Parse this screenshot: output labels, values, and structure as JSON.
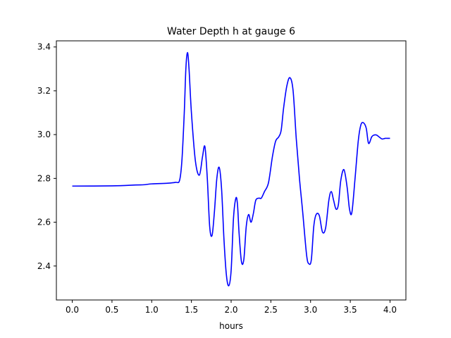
{
  "chart_data": {
    "type": "line",
    "title": "Water Depth h at gauge 6",
    "xlabel": "hours",
    "ylabel": "",
    "xlim": [
      -0.2,
      4.2
    ],
    "ylim": [
      2.245,
      3.428
    ],
    "xticks": [
      0.0,
      0.5,
      1.0,
      1.5,
      2.0,
      2.5,
      3.0,
      3.5,
      4.0
    ],
    "xtick_labels": [
      "0.0",
      "0.5",
      "1.0",
      "1.5",
      "2.0",
      "2.5",
      "3.0",
      "3.5",
      "4.0"
    ],
    "yticks": [
      2.4,
      2.6,
      2.8,
      3.0,
      3.2,
      3.4
    ],
    "ytick_labels": [
      "2.4",
      "2.6",
      "2.8",
      "3.0",
      "3.2",
      "3.4"
    ],
    "grid": false,
    "series": [
      {
        "color": "#0000ff",
        "x": [
          0.0,
          0.5,
          0.8,
          0.9,
          1.0,
          1.2,
          1.3,
          1.35,
          1.38,
          1.41,
          1.43,
          1.45,
          1.47,
          1.5,
          1.55,
          1.6,
          1.64,
          1.67,
          1.7,
          1.73,
          1.76,
          1.79,
          1.82,
          1.85,
          1.88,
          1.91,
          1.94,
          1.97,
          2.0,
          2.03,
          2.06,
          2.08,
          2.1,
          2.13,
          2.16,
          2.19,
          2.22,
          2.25,
          2.28,
          2.31,
          2.35,
          2.38,
          2.42,
          2.47,
          2.52,
          2.56,
          2.6,
          2.63,
          2.66,
          2.7,
          2.74,
          2.78,
          2.82,
          2.86,
          2.9,
          2.95,
          2.98,
          3.01,
          3.04,
          3.07,
          3.11,
          3.15,
          3.19,
          3.23,
          3.26,
          3.29,
          3.32,
          3.35,
          3.38,
          3.42,
          3.46,
          3.49,
          3.52,
          3.56,
          3.6,
          3.63,
          3.66,
          3.7,
          3.73,
          3.77,
          3.8,
          3.83,
          3.86,
          3.9,
          3.94,
          3.97,
          4.0
        ],
        "y": [
          2.765,
          2.766,
          2.77,
          2.771,
          2.775,
          2.778,
          2.782,
          2.79,
          2.88,
          3.1,
          3.3,
          3.375,
          3.3,
          3.1,
          2.88,
          2.815,
          2.9,
          2.945,
          2.8,
          2.58,
          2.54,
          2.65,
          2.8,
          2.85,
          2.75,
          2.52,
          2.36,
          2.31,
          2.38,
          2.62,
          2.71,
          2.68,
          2.55,
          2.42,
          2.43,
          2.58,
          2.635,
          2.6,
          2.64,
          2.7,
          2.71,
          2.71,
          2.74,
          2.78,
          2.9,
          2.97,
          2.99,
          3.02,
          3.12,
          3.22,
          3.26,
          3.2,
          2.98,
          2.8,
          2.65,
          2.45,
          2.41,
          2.43,
          2.58,
          2.635,
          2.63,
          2.555,
          2.575,
          2.7,
          2.74,
          2.7,
          2.66,
          2.68,
          2.79,
          2.84,
          2.76,
          2.66,
          2.645,
          2.8,
          2.97,
          3.04,
          3.055,
          3.03,
          2.96,
          2.99,
          2.998,
          2.998,
          2.99,
          2.98,
          2.983,
          2.983,
          2.983
        ]
      }
    ]
  }
}
